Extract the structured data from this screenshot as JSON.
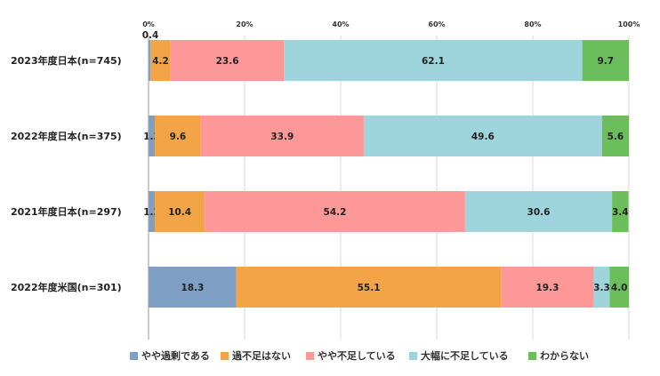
{
  "chart_data": {
    "type": "bar",
    "orientation": "horizontal",
    "stacked": "percent",
    "xlim": [
      0,
      100
    ],
    "x_ticks": [
      "0%",
      "20%",
      "40%",
      "60%",
      "80%",
      "100%"
    ],
    "grid": true,
    "legend_position": "bottom",
    "categories": [
      "2023年度日本(n=745)",
      "2022年度日本(n=375)",
      "2021年度日本(n=297)",
      "2022年度米国(n=301)"
    ],
    "series": [
      {
        "name": "やや過剰である",
        "color": "#7f9fc5",
        "values": [
          0.4,
          1.3,
          1.3,
          18.3
        ]
      },
      {
        "name": "過不足はない",
        "color": "#f2a447",
        "values": [
          4.2,
          9.6,
          10.4,
          55.1
        ]
      },
      {
        "name": "やや不足している",
        "color": "#fd9898",
        "values": [
          23.6,
          33.9,
          54.2,
          19.3
        ]
      },
      {
        "name": "大幅に不足している",
        "color": "#9ed5dc",
        "values": [
          62.1,
          49.6,
          30.6,
          3.3
        ]
      },
      {
        "name": "わからない",
        "color": "#6bbe5b",
        "values": [
          9.7,
          5.6,
          3.4,
          4.0
        ]
      }
    ],
    "value_labels": [
      [
        "0.4",
        "4.2",
        "23.6",
        "62.1",
        "9.7"
      ],
      [
        "1.3",
        "9.6",
        "33.9",
        "49.6",
        "5.6"
      ],
      [
        "1.3",
        "10.4",
        "54.2",
        "30.6",
        "3.4"
      ],
      [
        "18.3",
        "55.1",
        "19.3",
        "3.3",
        "4.0"
      ]
    ]
  }
}
